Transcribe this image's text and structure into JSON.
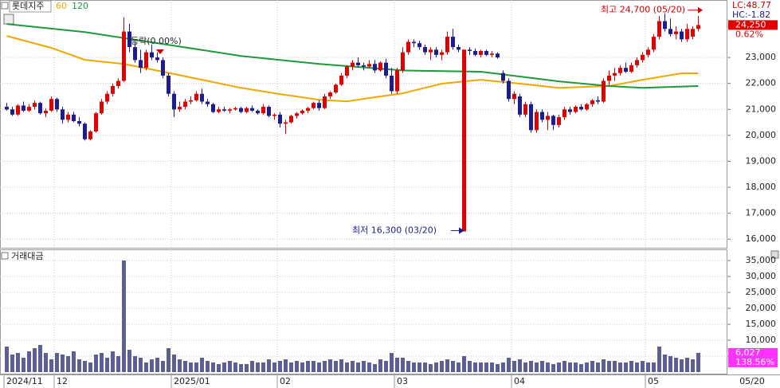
{
  "chart_data": {
    "type": "candlestick",
    "title": "롯데지주",
    "panel_label": "거래대금",
    "stats": [
      "LC:48.77",
      "HC:-1.82"
    ],
    "change_label": "0.62%",
    "volume_ratio_label": "138.56%",
    "date_label": "05/20",
    "flat_label": "등락(0.00%)",
    "high_note": {
      "value": 24700,
      "label": "최고 24,700 (05/20)"
    },
    "low_note": {
      "value": 16300,
      "label": "최저 16,300 (03/20)"
    },
    "current": {
      "value": 24250,
      "label": "24,250"
    },
    "volume_current": {
      "value": 6027,
      "label": "6,027"
    },
    "up_color": "#e00000",
    "down_color": "#1c1c8c",
    "volume_color": "#5e5e96",
    "open": [
      21100,
      21000,
      20800,
      21150,
      20950,
      21100,
      21250,
      20850,
      20950,
      21400,
      21000,
      20600,
      20800,
      20550,
      20450,
      19850,
      20150,
      20850,
      21300,
      21600,
      21900,
      22100,
      24000,
      23400,
      22900,
      22600,
      23200,
      23000,
      22900,
      22300,
      21600,
      21000,
      21100,
      21300,
      21350,
      21600,
      21300,
      21200,
      20900,
      21000,
      20950,
      21000,
      21050,
      20900,
      21050,
      20950,
      20850,
      21100,
      20750,
      20800,
      20450,
      20500,
      20750,
      20850,
      20950,
      21050,
      21250,
      21050,
      21500,
      21650,
      21950,
      22300,
      22650,
      22800,
      22700,
      22650,
      22750,
      22500,
      22800,
      22300,
      21700,
      22500,
      23200,
      23600,
      23550,
      23400,
      23200,
      23300,
      23100,
      23200,
      23800,
      23400,
      16300,
      23300,
      23250,
      23100,
      23250,
      23100,
      23150,
      22400,
      22100,
      21400,
      21500,
      20800,
      21200,
      20200,
      20900,
      20600,
      20750,
      20400,
      20700,
      21000,
      20900,
      21100,
      21000,
      21200,
      21350,
      21300,
      22100,
      22300,
      22400,
      22600,
      22450,
      22700,
      22900,
      23100,
      23300,
      23800,
      24400,
      24100,
      23900,
      24000,
      23700,
      23800,
      24100
    ],
    "high": [
      21250,
      21100,
      21200,
      21300,
      21200,
      21350,
      21300,
      21050,
      21500,
      21450,
      21100,
      20900,
      20900,
      20700,
      20500,
      20200,
      20900,
      21400,
      21700,
      22000,
      22200,
      24550,
      24300,
      23600,
      23300,
      23300,
      23500,
      23200,
      23000,
      22400,
      21700,
      21300,
      21400,
      21500,
      21700,
      21800,
      21400,
      21250,
      21100,
      21100,
      21050,
      21100,
      21100,
      21100,
      21150,
      21000,
      21200,
      21150,
      20850,
      20900,
      20600,
      20800,
      20900,
      21000,
      21100,
      21300,
      21350,
      21600,
      21700,
      22000,
      22400,
      22700,
      22900,
      23000,
      22800,
      22900,
      22900,
      22850,
      22950,
      22600,
      22600,
      23400,
      23700,
      23700,
      23650,
      23500,
      23400,
      23400,
      23300,
      24000,
      24100,
      23500,
      23300,
      23400,
      23350,
      23300,
      23300,
      23250,
      23200,
      22500,
      22200,
      21700,
      21600,
      21300,
      21300,
      21000,
      21000,
      20900,
      20800,
      20800,
      21100,
      21100,
      21150,
      21200,
      21250,
      21400,
      21500,
      22200,
      22500,
      22600,
      22700,
      22800,
      22800,
      23000,
      23200,
      23400,
      23900,
      24600,
      24700,
      24500,
      24200,
      24100,
      24300,
      24200,
      24600
    ],
    "low": [
      20950,
      20750,
      20750,
      20900,
      20900,
      21000,
      20800,
      20700,
      20900,
      20900,
      20450,
      20500,
      20500,
      20350,
      19800,
      19800,
      20100,
      20800,
      21200,
      21500,
      21800,
      22050,
      23200,
      22800,
      22400,
      22500,
      22900,
      22800,
      22200,
      21500,
      20700,
      20900,
      21000,
      21200,
      21300,
      21200,
      21100,
      20850,
      20850,
      20900,
      20850,
      20950,
      20850,
      20850,
      20900,
      20800,
      20800,
      20700,
      20600,
      20300,
      20050,
      20450,
      20650,
      20800,
      20850,
      21000,
      20950,
      21000,
      21400,
      21600,
      21900,
      22200,
      22500,
      22600,
      22500,
      22600,
      22400,
      22450,
      22200,
      21600,
      21600,
      22400,
      23100,
      23400,
      23300,
      23100,
      22900,
      23000,
      22900,
      23100,
      23300,
      23200,
      16300,
      23100,
      23050,
      23000,
      23050,
      23000,
      22950,
      22000,
      21300,
      21200,
      20700,
      20700,
      20100,
      20100,
      20500,
      20200,
      20200,
      20300,
      20600,
      20800,
      20850,
      20950,
      20950,
      21100,
      21200,
      21250,
      21900,
      22100,
      22300,
      22400,
      22400,
      22600,
      22800,
      23000,
      23200,
      23700,
      24000,
      23800,
      23700,
      23600,
      23600,
      23700,
      24000
    ],
    "close": [
      21000,
      20800,
      21150,
      20950,
      21100,
      21250,
      20850,
      20950,
      21400,
      21000,
      20600,
      20800,
      20550,
      20450,
      19850,
      20150,
      20850,
      21300,
      21600,
      21900,
      22100,
      24000,
      23400,
      22900,
      22600,
      23200,
      23000,
      22900,
      22300,
      21600,
      21000,
      21100,
      21300,
      21350,
      21600,
      21300,
      21200,
      20900,
      21000,
      20950,
      21000,
      21050,
      20900,
      21050,
      20950,
      20850,
      21100,
      20750,
      20800,
      20450,
      20500,
      20750,
      20850,
      20950,
      21050,
      21250,
      21050,
      21500,
      21650,
      21950,
      22300,
      22650,
      22800,
      22700,
      22650,
      22750,
      22500,
      22800,
      22300,
      21700,
      22500,
      23200,
      23600,
      23550,
      23400,
      23200,
      23300,
      23100,
      23200,
      23800,
      23400,
      23300,
      23300,
      23250,
      23100,
      23250,
      23100,
      23150,
      23000,
      22100,
      21400,
      21600,
      20800,
      21200,
      20200,
      20900,
      20600,
      20750,
      20400,
      20700,
      21000,
      20900,
      21100,
      21000,
      21200,
      21350,
      21300,
      22100,
      22300,
      22400,
      22600,
      22450,
      22700,
      22900,
      23100,
      23300,
      23800,
      24400,
      24100,
      23900,
      24000,
      23700,
      24100,
      24100,
      24250
    ],
    "volume": [
      8000,
      5500,
      6000,
      4500,
      6500,
      7500,
      8500,
      6000,
      4000,
      6000,
      5500,
      5000,
      6500,
      4000,
      3500,
      3000,
      5500,
      6000,
      4500,
      6500,
      5000,
      35000,
      7000,
      5000,
      4500,
      3000,
      4000,
      4500,
      3500,
      7500,
      5500,
      4000,
      3500,
      3000,
      3000,
      4500,
      3500,
      3000,
      2500,
      3000,
      3500,
      3000,
      2500,
      2500,
      3500,
      3000,
      3000,
      4000,
      3000,
      3500,
      4000,
      3000,
      3500,
      3000,
      3500,
      3500,
      3000,
      3500,
      4000,
      3500,
      4000,
      3000,
      3500,
      3000,
      3500,
      3000,
      2500,
      4000,
      3500,
      6000,
      4500,
      4500,
      3500,
      3000,
      3000,
      3000,
      2500,
      3000,
      3500,
      4000,
      3500,
      3000,
      5000,
      3500,
      3000,
      3000,
      3000,
      3000,
      2500,
      3000,
      4500,
      3500,
      4000,
      3000,
      3500,
      3000,
      3500,
      3000,
      2500,
      3000,
      3500,
      3000,
      3000,
      2500,
      3000,
      3500,
      3000,
      4000,
      3500,
      3500,
      3000,
      3000,
      3500,
      3000,
      3500,
      3000,
      3000,
      8000,
      5500,
      5000,
      4500,
      4000,
      4500,
      4000,
      6027
    ],
    "moving_averages": [
      {
        "name": "60",
        "color": "#f0a800",
        "x": [
          0,
          8,
          14,
          21,
          28,
          35,
          42,
          49,
          56,
          61,
          66,
          71,
          78,
          85,
          92,
          99,
          108,
          114,
          121,
          124
        ],
        "values": [
          23830,
          23370,
          22910,
          22750,
          22450,
          22140,
          21830,
          21590,
          21370,
          21310,
          21470,
          21620,
          21990,
          22140,
          21990,
          21830,
          21900,
          22140,
          22390,
          22390
        ]
      },
      {
        "name": "120",
        "color": "#1c9a3c",
        "x": [
          0,
          14,
          28,
          42,
          56,
          71,
          85,
          99,
          108,
          114,
          124
        ],
        "values": [
          24290,
          23980,
          23520,
          23060,
          22750,
          22500,
          22450,
          22080,
          21900,
          21830,
          21900
        ]
      }
    ],
    "ylim": [
      15700,
      25060
    ],
    "yticks": [
      {
        "value": 16000,
        "label": "16,000"
      },
      {
        "value": 17000,
        "label": "17,000"
      },
      {
        "value": 18000,
        "label": "18,000"
      },
      {
        "value": 19000,
        "label": "19,000"
      },
      {
        "value": 20000,
        "label": "20,000"
      },
      {
        "value": 21000,
        "label": "21,000"
      },
      {
        "value": 22000,
        "label": "22,000"
      },
      {
        "value": 23000,
        "label": "23,000"
      }
    ],
    "volume_ylim": [
      0,
      38000
    ],
    "volume_yticks": [
      {
        "value": 5000,
        "label": "5,000"
      },
      {
        "value": 10000,
        "label": "10,000"
      },
      {
        "value": 15000,
        "label": "15,000"
      },
      {
        "value": 20000,
        "label": "20,000"
      },
      {
        "value": 25000,
        "label": "25,000"
      },
      {
        "value": 30000,
        "label": "30,000"
      },
      {
        "value": 35000,
        "label": "35,000"
      }
    ],
    "xticks": [
      {
        "value": 0,
        "label": "2024/11"
      },
      {
        "value": 9,
        "label": "12"
      },
      {
        "value": 30,
        "label": "2025/01"
      },
      {
        "value": 49,
        "label": "02"
      },
      {
        "value": 70,
        "label": "03"
      },
      {
        "value": 91,
        "label": "04"
      },
      {
        "value": 115,
        "label": "05"
      }
    ]
  }
}
